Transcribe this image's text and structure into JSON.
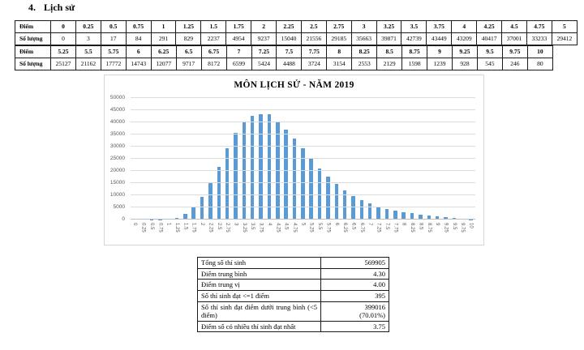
{
  "heading": {
    "number": "4.",
    "text": "Lịch sử"
  },
  "score_table": {
    "score_row_label": "Điểm",
    "count_row_label": "Số lượng",
    "upper": {
      "scores": [
        "0",
        "0.25",
        "0.5",
        "0.75",
        "1",
        "1.25",
        "1.5",
        "1.75",
        "2",
        "2.25",
        "2.5",
        "2.75",
        "3",
        "3.25",
        "3.5",
        "3.75",
        "4",
        "4.25",
        "4.5",
        "4.75",
        "5"
      ],
      "counts": [
        "0",
        "3",
        "17",
        "84",
        "291",
        "829",
        "2237",
        "4954",
        "9237",
        "15040",
        "21556",
        "29185",
        "35663",
        "39871",
        "42739",
        "43449",
        "43209",
        "40417",
        "37001",
        "33233",
        "29412"
      ]
    },
    "lower": {
      "scores": [
        "5.25",
        "5.5",
        "5.75",
        "6",
        "6.25",
        "6.5",
        "6.75",
        "7",
        "7.25",
        "7.5",
        "7.75",
        "8",
        "8.25",
        "8.5",
        "8.75",
        "9",
        "9.25",
        "9.5",
        "9.75",
        "10"
      ],
      "counts": [
        "25127",
        "21162",
        "17772",
        "14743",
        "12077",
        "9717",
        "8172",
        "6599",
        "5424",
        "4488",
        "3724",
        "3154",
        "2553",
        "2129",
        "1598",
        "1239",
        "928",
        "545",
        "246",
        "80"
      ]
    }
  },
  "chart_data": {
    "type": "bar",
    "title": "MÔN LỊCH SỬ - NĂM 2019",
    "categories": [
      "0",
      "0.25",
      "0.5",
      "0.75",
      "1",
      "1.25",
      "1.5",
      "1.75",
      "2",
      "2.25",
      "2.5",
      "2.75",
      "3",
      "3.25",
      "3.5",
      "3.75",
      "4",
      "4.25",
      "4.5",
      "4.75",
      "5",
      "5.25",
      "5.5",
      "5.75",
      "6",
      "6.25",
      "6.5",
      "6.75",
      "7",
      "7.25",
      "7.5",
      "7.75",
      "8",
      "8.25",
      "8.5",
      "8.75",
      "9",
      "9.25",
      "9.5",
      "9.75",
      "10"
    ],
    "values": [
      0,
      3,
      17,
      84,
      291,
      829,
      2237,
      4954,
      9237,
      15040,
      21556,
      29185,
      35663,
      39871,
      42739,
      43449,
      43209,
      40417,
      37001,
      33233,
      29412,
      25127,
      21162,
      17772,
      14743,
      12077,
      9717,
      8172,
      6599,
      5424,
      4488,
      3724,
      3154,
      2553,
      2129,
      1598,
      1239,
      928,
      545,
      246,
      80
    ],
    "xlabel": "",
    "ylabel": "",
    "ylim": [
      0,
      50000
    ],
    "ytick_step": 5000,
    "yticks": [
      "0",
      "5000",
      "10000",
      "15000",
      "20000",
      "25000",
      "30000",
      "35000",
      "40000",
      "45000",
      "50000"
    ],
    "bar_color": "#5B9BD5",
    "grid": true,
    "legend": "none"
  },
  "summary_table": {
    "rows": [
      {
        "label": "Tổng số thí sinh",
        "value": "569905"
      },
      {
        "label": "Điểm trung bình",
        "value": "4.30"
      },
      {
        "label": "Điểm trung vị",
        "value": "4.00"
      },
      {
        "label": "Số thí sinh đạt <=1 điểm",
        "value": "395"
      },
      {
        "label": "Số thí sinh đạt điểm dưới trung bình (<5 điểm)",
        "value": "399016",
        "value2": "(70.01%)"
      },
      {
        "label": "Điểm số có nhiều thí sinh đạt nhất",
        "value": "3.75"
      }
    ]
  }
}
